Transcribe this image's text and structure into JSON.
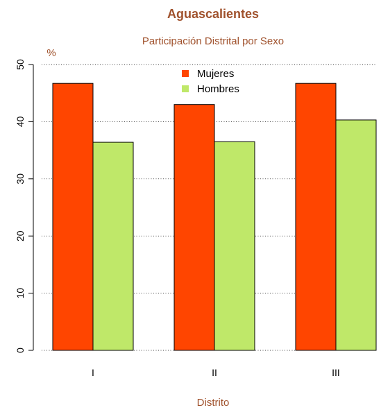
{
  "chart_data": {
    "type": "bar",
    "title": "Aguascalientes",
    "subtitle": "Participación Distrital por Sexo",
    "xlabel": "Distrito",
    "ylabel": "%",
    "categories": [
      "I",
      "II",
      "III"
    ],
    "series": [
      {
        "name": "Mujeres",
        "values": [
          46.7,
          43.0,
          46.7
        ],
        "color": "#ff4500"
      },
      {
        "name": "Hombres",
        "values": [
          36.4,
          36.5,
          40.3
        ],
        "color": "#bfe869"
      }
    ],
    "ylim": [
      0,
      50
    ],
    "yticks": [
      0,
      10,
      20,
      30,
      40,
      50
    ],
    "grid": true,
    "legend_position": "top-center",
    "text_color": "#a0522d"
  }
}
